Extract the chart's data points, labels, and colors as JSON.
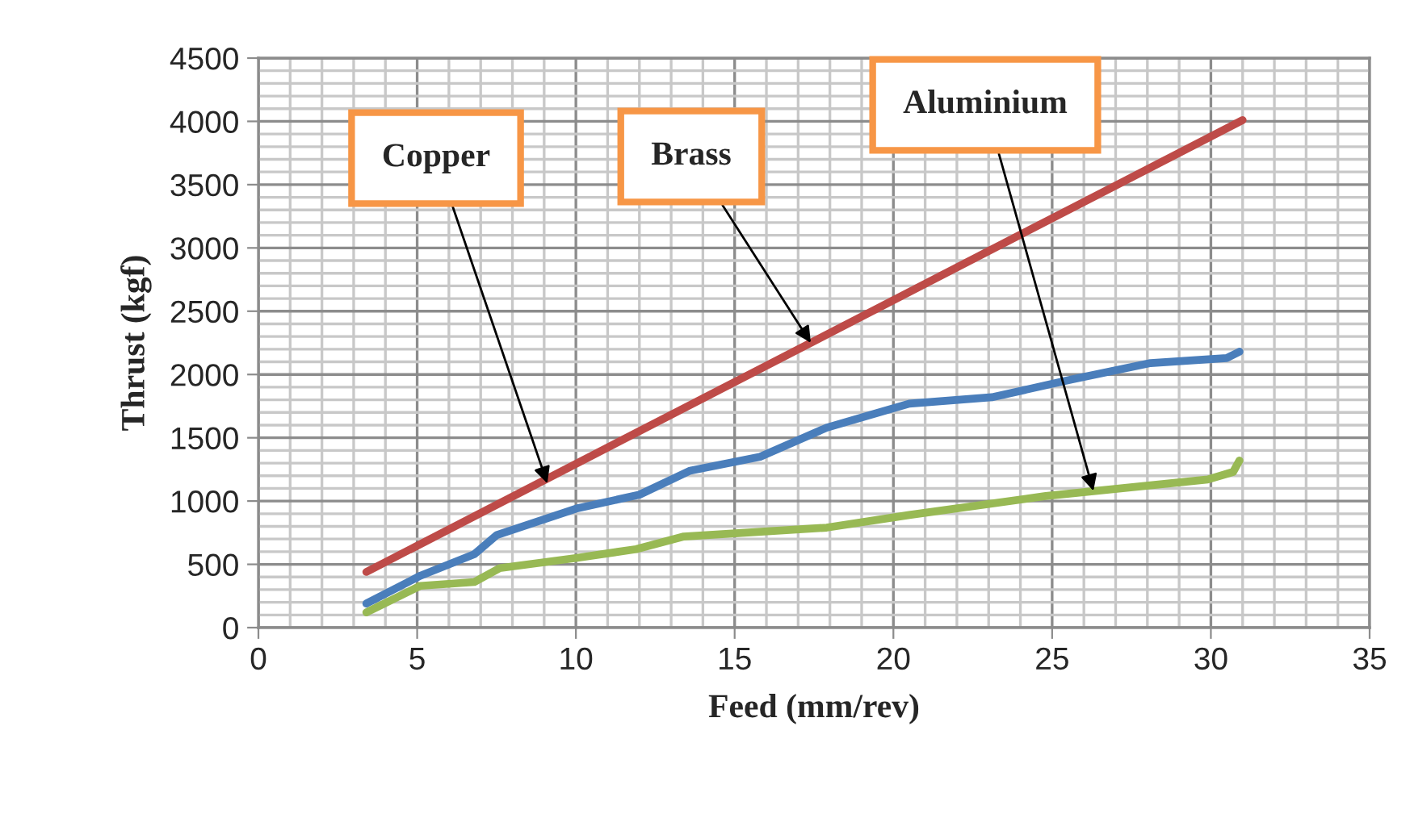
{
  "chart_data": {
    "type": "line",
    "xlabel": "Feed (mm/rev)",
    "ylabel": "Thrust (kgf)",
    "series": [
      {
        "color": "#be4b48",
        "x": [
          3.4,
          31.0
        ],
        "values": [
          440,
          4010
        ]
      },
      {
        "color": "#4a7ebb",
        "x": [
          3.4,
          5.1,
          6.8,
          7.5,
          10.0,
          12.0,
          13.6,
          15.8,
          17.9,
          20.5,
          23.1,
          25.6,
          28.1,
          30.5,
          30.9
        ],
        "values": [
          190,
          410,
          580,
          730,
          940,
          1050,
          1240,
          1350,
          1580,
          1770,
          1820,
          1960,
          2090,
          2130,
          2180
        ]
      },
      {
        "color": "#98b954",
        "x": [
          3.4,
          5.1,
          6.8,
          7.6,
          10.0,
          11.9,
          13.4,
          17.9,
          20.5,
          24.8,
          29.9,
          30.7,
          30.9
        ],
        "values": [
          120,
          330,
          360,
          470,
          550,
          620,
          720,
          790,
          890,
          1040,
          1170,
          1230,
          1320
        ]
      }
    ],
    "annotations": [
      {
        "text": "Copper",
        "x": 9.1,
        "y": 1140
      },
      {
        "text": "Brass",
        "x": 17.4,
        "y": 2250
      },
      {
        "text": "Aluminium",
        "x": 26.3,
        "y": 1080
      }
    ],
    "xlim": [
      0,
      35
    ],
    "xticks": [
      0,
      5,
      10,
      15,
      20,
      25,
      30,
      35
    ],
    "ylim": [
      0,
      4500
    ],
    "yticks": [
      0,
      500,
      1000,
      1500,
      2000,
      2500,
      3000,
      3500,
      4000,
      4500
    ],
    "grid": true,
    "marker": "none",
    "line_style": "solid"
  }
}
